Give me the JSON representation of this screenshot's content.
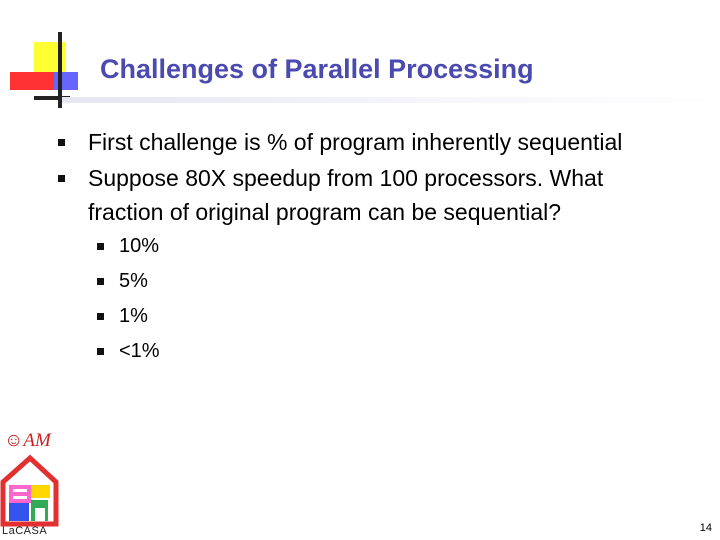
{
  "slide": {
    "title": "Challenges of Parallel Processing",
    "bullets": [
      "First challenge is % of program inherently sequential",
      "Suppose 80X speedup from 100 processors. What",
      "fraction of original program can be sequential?"
    ],
    "sub_bullets": [
      "10%",
      "5%",
      "1%",
      "<1%"
    ],
    "page_number": "14"
  },
  "logo": {
    "am_text": "☺AM",
    "name": "LaCASA"
  },
  "colors": {
    "title": "#4a4ab0",
    "accent_yellow": "#ffff33",
    "accent_red": "#ff3333",
    "accent_blue": "#6666ff"
  }
}
